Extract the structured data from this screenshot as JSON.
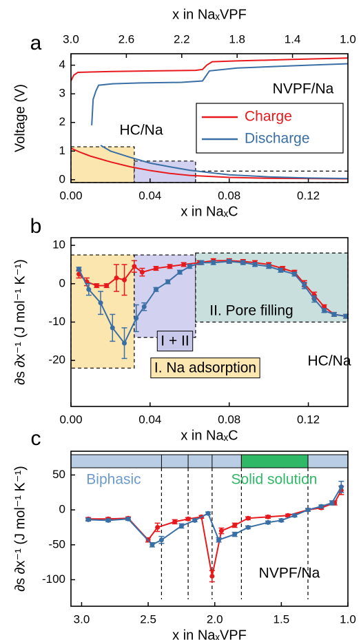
{
  "chart_data": [
    {
      "type": "line",
      "panel": "a",
      "xlabel": "x in NaₓC",
      "x2label": "x in NaₓVPF",
      "ylabel": "Voltage (V)",
      "xlim": [
        0,
        0.14
      ],
      "xticks": [
        {
          "value": 0,
          "label": "0.00"
        },
        {
          "value": 0.04,
          "label": "0.04"
        },
        {
          "value": 0.08,
          "label": "0.08"
        },
        {
          "value": 0.12,
          "label": "0.12"
        }
      ],
      "x2lim": [
        3.0,
        1.0
      ],
      "x2ticks": [
        {
          "value": 3,
          "label": "3.0"
        },
        2.6,
        2.2,
        1.8,
        1.4,
        {
          "value": 1,
          "label": "1.0"
        }
      ],
      "ylim": [
        -0.1,
        4.4
      ],
      "yticks": [
        0,
        1,
        2,
        3,
        4
      ],
      "regions": [
        {
          "xlim": [
            0,
            0.032
          ],
          "ylim": [
            -0.1,
            1.15
          ],
          "color": "#fce6b0"
        },
        {
          "xlim": [
            0.032,
            0.063
          ],
          "ylim": [
            -0.1,
            0.65
          ],
          "color": "#d2d2f0"
        },
        {
          "xlim": [
            0.063,
            0.14
          ],
          "ylim": [
            -0.1,
            0.3
          ],
          "color": "none"
        }
      ],
      "series": [
        {
          "name": "Charge",
          "color": "#e8191c",
          "x": [
            0,
            0.005,
            0.01,
            0.02,
            0.03,
            0.04,
            0.05,
            0.06,
            0.08,
            0.1,
            0.12,
            0.14
          ],
          "values": [
            1.1,
            0.95,
            0.82,
            0.62,
            0.45,
            0.32,
            0.22,
            0.15,
            0.08,
            0.05,
            0.04,
            0.03
          ],
          "x2": [
            3.0,
            2.98,
            2.95,
            2.7,
            2.4,
            2.1,
            2.05,
            2.02,
            1.98,
            1.8,
            1.4,
            1.0
          ],
          "values2": [
            3.45,
            3.65,
            3.75,
            3.78,
            3.8,
            3.82,
            3.85,
            4.0,
            4.12,
            4.15,
            4.2,
            4.25
          ]
        },
        {
          "name": "Discharge",
          "color": "#3a6fa5",
          "x": [
            0.015,
            0.02,
            0.03,
            0.04,
            0.05,
            0.06,
            0.07,
            0.08,
            0.1,
            0.12,
            0.14
          ],
          "values": [
            1.2,
            1.0,
            0.78,
            0.58,
            0.45,
            0.33,
            0.25,
            0.17,
            0.1,
            0.06,
            0.04
          ],
          "x2": [
            2.85,
            2.84,
            2.82,
            2.8,
            2.7,
            2.5,
            2.2,
            2.05,
            2.0,
            1.8,
            1.4,
            1.0
          ],
          "values2": [
            1.9,
            2.8,
            3.1,
            3.3,
            3.35,
            3.38,
            3.4,
            3.45,
            3.8,
            3.9,
            3.98,
            4.05
          ]
        }
      ],
      "annotations": [
        {
          "text": "NVPF/Na",
          "color": "#000000"
        },
        {
          "text": "HC/Na",
          "color": "#000000"
        }
      ]
    },
    {
      "type": "line",
      "panel": "b",
      "xlabel": "x in NaₓC",
      "ylabel": "∂s ∂x⁻¹ (J mol⁻¹ K⁻¹)",
      "xlim": [
        0,
        0.14
      ],
      "xticks": [
        {
          "value": 0,
          "label": "0.00"
        },
        {
          "value": 0.04,
          "label": "0.04"
        },
        {
          "value": 0.08,
          "label": "0.08"
        },
        {
          "value": 0.12,
          "label": "0.12"
        }
      ],
      "ylim": [
        -32,
        12
      ],
      "yticks": [
        -20,
        -10,
        0,
        10
      ],
      "regions": [
        {
          "xlim": [
            0,
            0.032
          ],
          "ylim": [
            -22,
            7.5
          ],
          "color": "#fce6b0"
        },
        {
          "xlim": [
            0.032,
            0.063
          ],
          "ylim": [
            -14,
            7.5
          ],
          "color": "#d2d2f0"
        },
        {
          "xlim": [
            0.063,
            0.14
          ],
          "ylim": [
            -10,
            8
          ],
          "color": "#c8dfdd"
        }
      ],
      "series": [
        {
          "color": "#e8191c",
          "x": [
            0.004,
            0.008,
            0.013,
            0.018,
            0.023,
            0.027,
            0.032,
            0.036,
            0.043,
            0.05,
            0.057,
            0.065,
            0.072,
            0.08,
            0.087,
            0.093,
            0.1,
            0.107,
            0.113,
            0.118,
            0.123,
            0.128,
            0.133,
            0.139
          ],
          "values": [
            2.5,
            0.5,
            -0.5,
            -0.5,
            1.5,
            1,
            4.5,
            3,
            4,
            4.5,
            5,
            5.5,
            6,
            6,
            5.8,
            5.5,
            5,
            4,
            3,
            0,
            -3,
            -6,
            -8,
            -8.5
          ],
          "errors": [
            1,
            1,
            0.5,
            0.5,
            3.5,
            4,
            1.5,
            1,
            0.5,
            0.5,
            0.5,
            0.5,
            0.5,
            0.5,
            0.5,
            0.5,
            0.5,
            0.5,
            0.5,
            0.8,
            0.8,
            0.5,
            0.5,
            0.5
          ]
        },
        {
          "color": "#3a6fa5",
          "x": [
            0.004,
            0.009,
            0.015,
            0.021,
            0.027,
            0.033,
            0.037,
            0.043,
            0.049,
            0.055,
            0.06,
            0.066,
            0.072,
            0.08,
            0.087,
            0.093,
            0.1,
            0.106,
            0.113,
            0.118,
            0.123,
            0.128,
            0.133,
            0.139
          ],
          "values": [
            3.8,
            -1.5,
            -5,
            -11.5,
            -15.5,
            -9,
            -6,
            -1.5,
            0.5,
            3,
            4.5,
            5.5,
            5.5,
            5.8,
            5.5,
            5,
            4.5,
            3.5,
            2.5,
            -0.5,
            -4,
            -7,
            -8,
            -8.5
          ],
          "errors": [
            0.5,
            1.5,
            3,
            3.5,
            4,
            3.5,
            1,
            0.5,
            0.5,
            0.5,
            0.5,
            0.5,
            0.5,
            0.5,
            0.5,
            0.5,
            0.5,
            0.5,
            0.5,
            0.8,
            0.8,
            0.5,
            0.5,
            0.5
          ]
        }
      ],
      "annotations": [
        {
          "text": "II. Pore filling",
          "color": "#000000"
        },
        {
          "text": "I + II",
          "color": "#000000",
          "background": "#c8c8ea"
        },
        {
          "text": "I. Na adsorption",
          "color": "#000000",
          "background": "#fde7b0"
        },
        {
          "text": "HC/Na",
          "color": "#000000"
        }
      ]
    },
    {
      "type": "line",
      "panel": "c",
      "xlabel": "x in NaₓVPF",
      "ylabel": "∂s ∂x⁻¹ (J mol⁻¹ K⁻¹)",
      "xlim": [
        3.08,
        1.0
      ],
      "xticks": [
        {
          "value": 3,
          "label": "3.0"
        },
        2.5,
        {
          "value": 2,
          "label": "2.0"
        },
        1.5,
        {
          "value": 1,
          "label": "1.0"
        }
      ],
      "ylim": [
        -138,
        84
      ],
      "yticks": [
        -100,
        -50,
        0,
        50
      ],
      "boundaries": [
        2.4,
        2.2,
        2.02,
        1.8,
        1.3
      ],
      "bar_colors": [
        "#b9cde5",
        "#2fb865"
      ],
      "series": [
        {
          "color": "#e8191c",
          "x": [
            2.95,
            2.8,
            2.65,
            2.5,
            2.43,
            2.3,
            2.2,
            2.1,
            2.02,
            1.95,
            1.85,
            1.75,
            1.6,
            1.45,
            1.3,
            1.2,
            1.1,
            1.05
          ],
          "values": [
            -13,
            -13,
            -12,
            -43,
            -25,
            -17,
            -13,
            -10,
            -95,
            -30,
            -22,
            -12,
            -10,
            -8,
            0,
            3,
            10,
            28
          ],
          "errors": [
            2,
            2,
            2,
            3,
            6,
            3,
            2,
            2,
            8,
            4,
            3,
            2,
            2,
            2,
            2,
            2,
            3,
            6
          ]
        },
        {
          "color": "#3a6fa5",
          "x": [
            2.95,
            2.8,
            2.65,
            2.47,
            2.4,
            2.25,
            2.15,
            2.05,
            1.97,
            1.85,
            1.75,
            1.6,
            1.5,
            1.4,
            1.3,
            1.2,
            1.12,
            1.05
          ],
          "values": [
            -14,
            -15,
            -13,
            -50,
            -43,
            -23,
            -15,
            -5,
            -43,
            -35,
            -25,
            -18,
            -15,
            -8,
            0,
            5,
            10,
            33
          ],
          "errors": [
            2,
            2,
            2,
            3,
            5,
            3,
            2,
            2,
            3,
            3,
            2,
            2,
            2,
            2,
            2,
            2,
            3,
            8
          ]
        }
      ],
      "annotations": [
        {
          "text": "Biphasic",
          "color": "#6b9acb"
        },
        {
          "text": "Solid solution",
          "color": "#2fb865"
        },
        {
          "text": "NVPF/Na",
          "color": "#000000"
        }
      ]
    }
  ]
}
